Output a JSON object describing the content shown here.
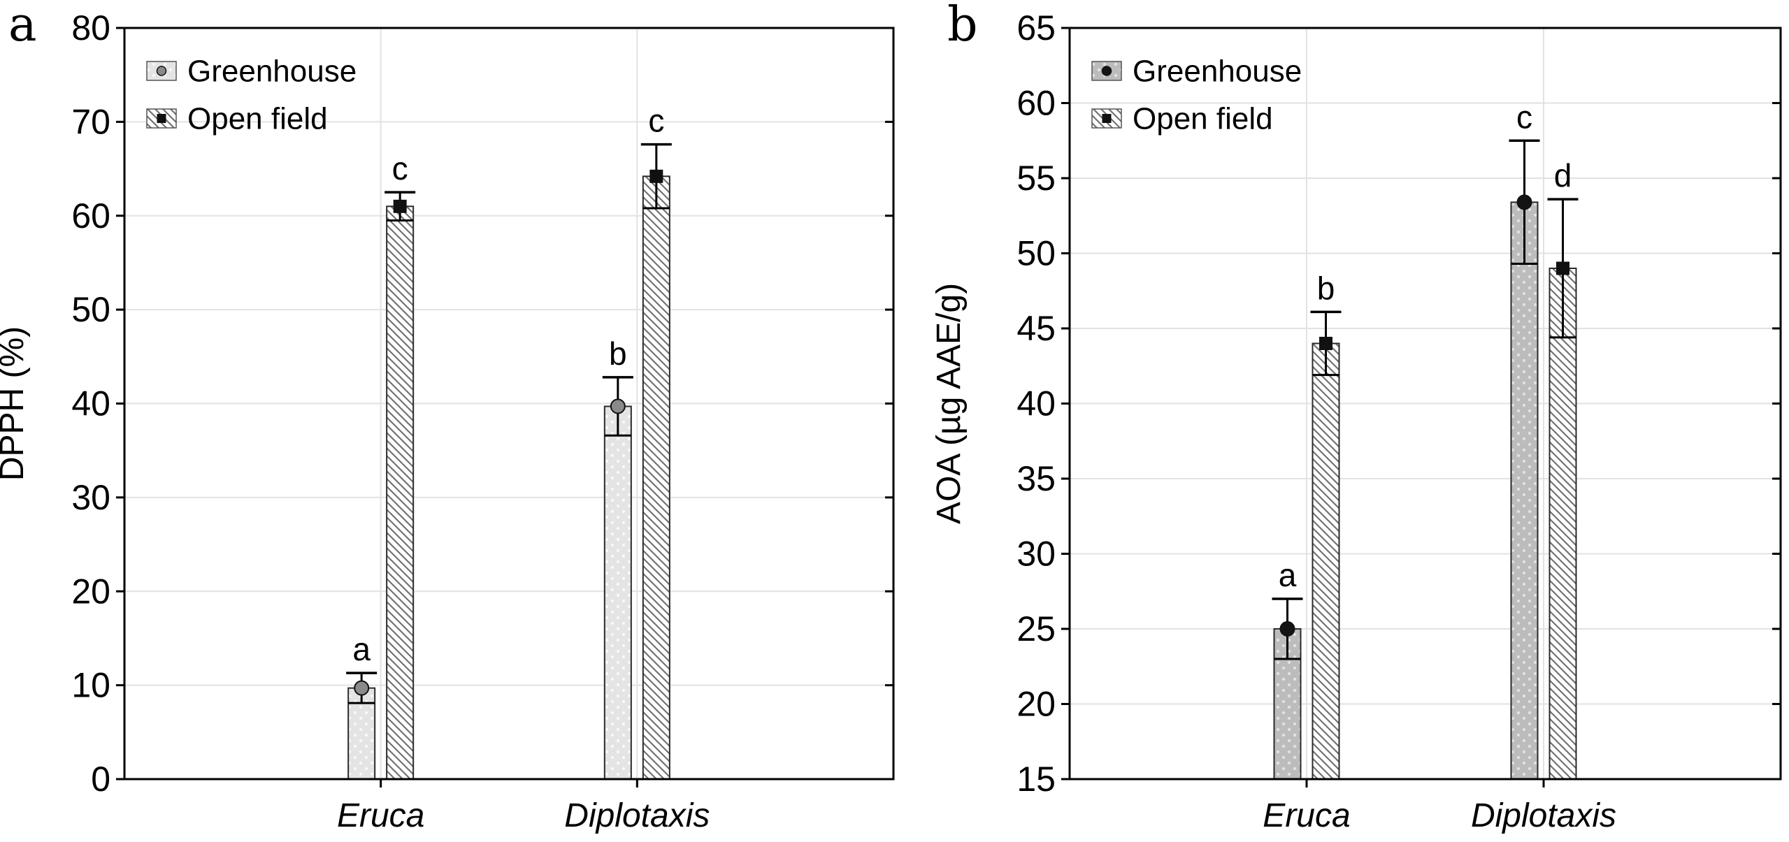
{
  "figure_background": "#ffffff",
  "frame_color": "#000000",
  "gridline_color": "#e2e2e2",
  "error_bar_color": "#000000",
  "chart_data": [
    {
      "type": "bar",
      "panel_label": "a",
      "ylabel": "DPPH (%)",
      "ylim": [
        0,
        80
      ],
      "ytick_step": 10,
      "ytick_labels": [
        "0",
        "10",
        "20",
        "30",
        "40",
        "50",
        "60",
        "70",
        "80"
      ],
      "grid": "horizontal gridlines at each tick plus vertical gridline at each category center",
      "legend_position": "top-left inside plot",
      "categories": [
        "Eruca",
        "Diplotaxis"
      ],
      "series": [
        {
          "name": "Greenhouse",
          "style": "gray-dotted",
          "marker": "circle",
          "fill": "#e4e4e4",
          "dot_color": "#f8f8f8",
          "marker_fill": "#8a8a8a",
          "values": [
            9.7,
            39.7
          ],
          "errors": [
            1.6,
            3.1
          ],
          "sig_letters": [
            "a",
            "b"
          ]
        },
        {
          "name": "Open field",
          "style": "diagonal-hatch",
          "marker": "square",
          "fill": "#ffffff",
          "hatch_color": "#6e6e6e",
          "marker_fill": "#111111",
          "values": [
            61.0,
            64.2
          ],
          "errors": [
            1.5,
            3.4
          ],
          "sig_letters": [
            "c",
            "c"
          ]
        }
      ]
    },
    {
      "type": "bar",
      "panel_label": "b",
      "ylabel": "AOA (µg AAE/g)",
      "ylim": [
        15,
        65
      ],
      "ytick_step": 5,
      "ytick_labels": [
        "15",
        "20",
        "25",
        "30",
        "35",
        "40",
        "45",
        "50",
        "55",
        "60",
        "65"
      ],
      "grid": "horizontal gridlines at each tick plus vertical gridline at each category center",
      "legend_position": "top-left inside plot",
      "categories": [
        "Eruca",
        "Diplotaxis"
      ],
      "series": [
        {
          "name": "Greenhouse",
          "style": "gray-dotted",
          "marker": "circle",
          "fill": "#bcbcbc",
          "dot_color": "#e2e2e2",
          "marker_fill": "#141414",
          "values": [
            25.0,
            53.4
          ],
          "errors": [
            2.0,
            4.1
          ],
          "sig_letters": [
            "a",
            "c"
          ]
        },
        {
          "name": "Open field",
          "style": "diagonal-hatch",
          "marker": "square",
          "fill": "#ffffff",
          "hatch_color": "#6e6e6e",
          "marker_fill": "#111111",
          "values": [
            44.0,
            49.0
          ],
          "errors": [
            2.1,
            4.6
          ],
          "sig_letters": [
            "b",
            "d"
          ]
        }
      ]
    }
  ]
}
